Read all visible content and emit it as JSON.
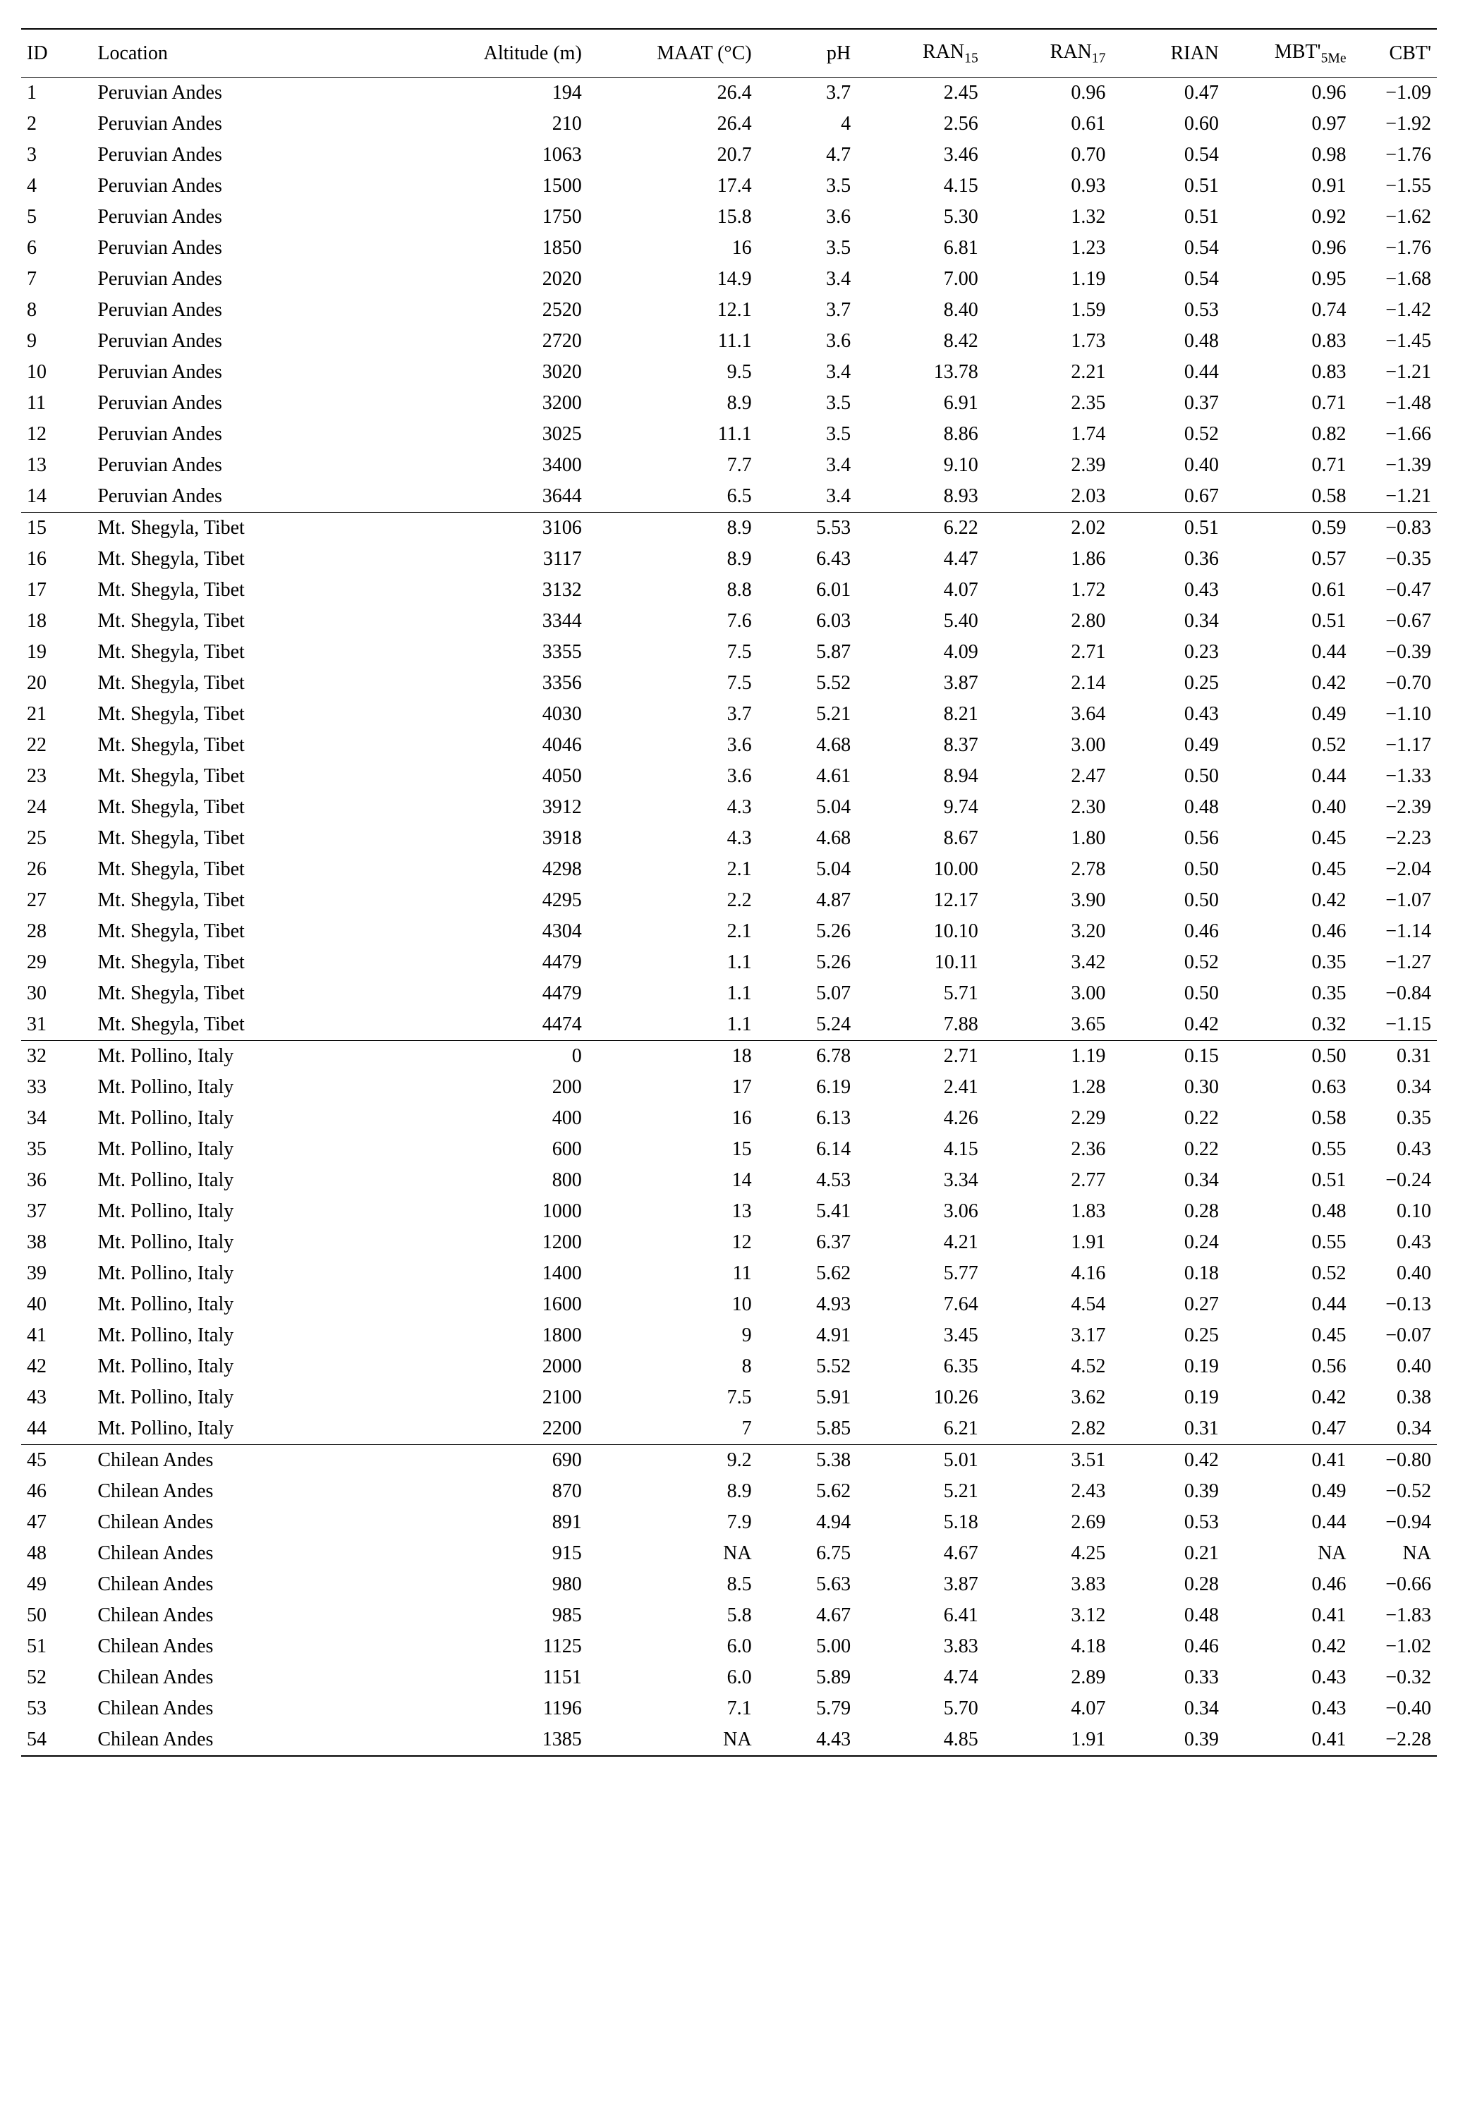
{
  "table": {
    "columns": [
      {
        "key": "id",
        "label": "ID",
        "align": "left",
        "width": "5%"
      },
      {
        "key": "location",
        "label": "Location",
        "align": "left",
        "width": "22%"
      },
      {
        "key": "altitude",
        "label": "Altitude (m)",
        "align": "right",
        "width": "13%"
      },
      {
        "key": "maat",
        "label": "MAAT (°C)",
        "align": "right",
        "width": "12%"
      },
      {
        "key": "ph",
        "label": "pH",
        "align": "right",
        "width": "7%"
      },
      {
        "key": "ran15",
        "label": "RAN",
        "sub": "15",
        "align": "right",
        "width": "9%"
      },
      {
        "key": "ran17",
        "label": "RAN",
        "sub": "17",
        "align": "right",
        "width": "9%"
      },
      {
        "key": "rian",
        "label": "RIAN",
        "align": "right",
        "width": "8%"
      },
      {
        "key": "mbt",
        "label": "MBT'",
        "sub": "5Me",
        "align": "right",
        "width": "9%"
      },
      {
        "key": "cbt",
        "label": "CBT'",
        "align": "right",
        "width": "8%"
      }
    ],
    "border_color": "#000000",
    "background_color": "#ffffff",
    "text_color": "#000000",
    "font_family": "Times New Roman",
    "header_fontsize": 28,
    "cell_fontsize": 28,
    "groups": [
      {
        "rows": [
          [
            "1",
            "Peruvian Andes",
            "194",
            "26.4",
            "3.7",
            "2.45",
            "0.96",
            "0.47",
            "0.96",
            "−1.09"
          ],
          [
            "2",
            "Peruvian Andes",
            "210",
            "26.4",
            "4",
            "2.56",
            "0.61",
            "0.60",
            "0.97",
            "−1.92"
          ],
          [
            "3",
            "Peruvian Andes",
            "1063",
            "20.7",
            "4.7",
            "3.46",
            "0.70",
            "0.54",
            "0.98",
            "−1.76"
          ],
          [
            "4",
            "Peruvian Andes",
            "1500",
            "17.4",
            "3.5",
            "4.15",
            "0.93",
            "0.51",
            "0.91",
            "−1.55"
          ],
          [
            "5",
            "Peruvian Andes",
            "1750",
            "15.8",
            "3.6",
            "5.30",
            "1.32",
            "0.51",
            "0.92",
            "−1.62"
          ],
          [
            "6",
            "Peruvian Andes",
            "1850",
            "16",
            "3.5",
            "6.81",
            "1.23",
            "0.54",
            "0.96",
            "−1.76"
          ],
          [
            "7",
            "Peruvian Andes",
            "2020",
            "14.9",
            "3.4",
            "7.00",
            "1.19",
            "0.54",
            "0.95",
            "−1.68"
          ],
          [
            "8",
            "Peruvian Andes",
            "2520",
            "12.1",
            "3.7",
            "8.40",
            "1.59",
            "0.53",
            "0.74",
            "−1.42"
          ],
          [
            "9",
            "Peruvian Andes",
            "2720",
            "11.1",
            "3.6",
            "8.42",
            "1.73",
            "0.48",
            "0.83",
            "−1.45"
          ],
          [
            "10",
            "Peruvian Andes",
            "3020",
            "9.5",
            "3.4",
            "13.78",
            "2.21",
            "0.44",
            "0.83",
            "−1.21"
          ],
          [
            "11",
            "Peruvian Andes",
            "3200",
            "8.9",
            "3.5",
            "6.91",
            "2.35",
            "0.37",
            "0.71",
            "−1.48"
          ],
          [
            "12",
            "Peruvian Andes",
            "3025",
            "11.1",
            "3.5",
            "8.86",
            "1.74",
            "0.52",
            "0.82",
            "−1.66"
          ],
          [
            "13",
            "Peruvian Andes",
            "3400",
            "7.7",
            "3.4",
            "9.10",
            "2.39",
            "0.40",
            "0.71",
            "−1.39"
          ],
          [
            "14",
            "Peruvian Andes",
            "3644",
            "6.5",
            "3.4",
            "8.93",
            "2.03",
            "0.67",
            "0.58",
            "−1.21"
          ]
        ]
      },
      {
        "rows": [
          [
            "15",
            "Mt. Shegyla, Tibet",
            "3106",
            "8.9",
            "5.53",
            "6.22",
            "2.02",
            "0.51",
            "0.59",
            "−0.83"
          ],
          [
            "16",
            "Mt. Shegyla, Tibet",
            "3117",
            "8.9",
            "6.43",
            "4.47",
            "1.86",
            "0.36",
            "0.57",
            "−0.35"
          ],
          [
            "17",
            "Mt. Shegyla, Tibet",
            "3132",
            "8.8",
            "6.01",
            "4.07",
            "1.72",
            "0.43",
            "0.61",
            "−0.47"
          ],
          [
            "18",
            "Mt. Shegyla, Tibet",
            "3344",
            "7.6",
            "6.03",
            "5.40",
            "2.80",
            "0.34",
            "0.51",
            "−0.67"
          ],
          [
            "19",
            "Mt. Shegyla, Tibet",
            "3355",
            "7.5",
            "5.87",
            "4.09",
            "2.71",
            "0.23",
            "0.44",
            "−0.39"
          ],
          [
            "20",
            "Mt. Shegyla, Tibet",
            "3356",
            "7.5",
            "5.52",
            "3.87",
            "2.14",
            "0.25",
            "0.42",
            "−0.70"
          ],
          [
            "21",
            "Mt. Shegyla, Tibet",
            "4030",
            "3.7",
            "5.21",
            "8.21",
            "3.64",
            "0.43",
            "0.49",
            "−1.10"
          ],
          [
            "22",
            "Mt. Shegyla, Tibet",
            "4046",
            "3.6",
            "4.68",
            "8.37",
            "3.00",
            "0.49",
            "0.52",
            "−1.17"
          ],
          [
            "23",
            "Mt. Shegyla, Tibet",
            "4050",
            "3.6",
            "4.61",
            "8.94",
            "2.47",
            "0.50",
            "0.44",
            "−1.33"
          ],
          [
            "24",
            "Mt. Shegyla, Tibet",
            "3912",
            "4.3",
            "5.04",
            "9.74",
            "2.30",
            "0.48",
            "0.40",
            "−2.39"
          ],
          [
            "25",
            "Mt. Shegyla, Tibet",
            "3918",
            "4.3",
            "4.68",
            "8.67",
            "1.80",
            "0.56",
            "0.45",
            "−2.23"
          ],
          [
            "26",
            "Mt. Shegyla, Tibet",
            "4298",
            "2.1",
            "5.04",
            "10.00",
            "2.78",
            "0.50",
            "0.45",
            "−2.04"
          ],
          [
            "27",
            "Mt. Shegyla, Tibet",
            "4295",
            "2.2",
            "4.87",
            "12.17",
            "3.90",
            "0.50",
            "0.42",
            "−1.07"
          ],
          [
            "28",
            "Mt. Shegyla, Tibet",
            "4304",
            "2.1",
            "5.26",
            "10.10",
            "3.20",
            "0.46",
            "0.46",
            "−1.14"
          ],
          [
            "29",
            "Mt. Shegyla, Tibet",
            "4479",
            "1.1",
            "5.26",
            "10.11",
            "3.42",
            "0.52",
            "0.35",
            "−1.27"
          ],
          [
            "30",
            "Mt. Shegyla, Tibet",
            "4479",
            "1.1",
            "5.07",
            "5.71",
            "3.00",
            "0.50",
            "0.35",
            "−0.84"
          ],
          [
            "31",
            "Mt. Shegyla, Tibet",
            "4474",
            "1.1",
            "5.24",
            "7.88",
            "3.65",
            "0.42",
            "0.32",
            "−1.15"
          ]
        ]
      },
      {
        "rows": [
          [
            "32",
            "Mt. Pollino, Italy",
            "0",
            "18",
            "6.78",
            "2.71",
            "1.19",
            "0.15",
            "0.50",
            "0.31"
          ],
          [
            "33",
            "Mt. Pollino, Italy",
            "200",
            "17",
            "6.19",
            "2.41",
            "1.28",
            "0.30",
            "0.63",
            "0.34"
          ],
          [
            "34",
            "Mt. Pollino, Italy",
            "400",
            "16",
            "6.13",
            "4.26",
            "2.29",
            "0.22",
            "0.58",
            "0.35"
          ],
          [
            "35",
            "Mt. Pollino, Italy",
            "600",
            "15",
            "6.14",
            "4.15",
            "2.36",
            "0.22",
            "0.55",
            "0.43"
          ],
          [
            "36",
            "Mt. Pollino, Italy",
            "800",
            "14",
            "4.53",
            "3.34",
            "2.77",
            "0.34",
            "0.51",
            "−0.24"
          ],
          [
            "37",
            "Mt. Pollino, Italy",
            "1000",
            "13",
            "5.41",
            "3.06",
            "1.83",
            "0.28",
            "0.48",
            "0.10"
          ],
          [
            "38",
            "Mt. Pollino, Italy",
            "1200",
            "12",
            "6.37",
            "4.21",
            "1.91",
            "0.24",
            "0.55",
            "0.43"
          ],
          [
            "39",
            "Mt. Pollino, Italy",
            "1400",
            "11",
            "5.62",
            "5.77",
            "4.16",
            "0.18",
            "0.52",
            "0.40"
          ],
          [
            "40",
            "Mt. Pollino, Italy",
            "1600",
            "10",
            "4.93",
            "7.64",
            "4.54",
            "0.27",
            "0.44",
            "−0.13"
          ],
          [
            "41",
            "Mt. Pollino, Italy",
            "1800",
            "9",
            "4.91",
            "3.45",
            "3.17",
            "0.25",
            "0.45",
            "−0.07"
          ],
          [
            "42",
            "Mt. Pollino, Italy",
            "2000",
            "8",
            "5.52",
            "6.35",
            "4.52",
            "0.19",
            "0.56",
            "0.40"
          ],
          [
            "43",
            "Mt. Pollino, Italy",
            "2100",
            "7.5",
            "5.91",
            "10.26",
            "3.62",
            "0.19",
            "0.42",
            "0.38"
          ],
          [
            "44",
            "Mt. Pollino, Italy",
            "2200",
            "7",
            "5.85",
            "6.21",
            "2.82",
            "0.31",
            "0.47",
            "0.34"
          ]
        ]
      },
      {
        "rows": [
          [
            "45",
            "Chilean Andes",
            "690",
            "9.2",
            "5.38",
            "5.01",
            "3.51",
            "0.42",
            "0.41",
            "−0.80"
          ],
          [
            "46",
            "Chilean Andes",
            "870",
            "8.9",
            "5.62",
            "5.21",
            "2.43",
            "0.39",
            "0.49",
            "−0.52"
          ],
          [
            "47",
            "Chilean Andes",
            "891",
            "7.9",
            "4.94",
            "5.18",
            "2.69",
            "0.53",
            "0.44",
            "−0.94"
          ],
          [
            "48",
            "Chilean Andes",
            "915",
            "NA",
            "6.75",
            "4.67",
            "4.25",
            "0.21",
            "NA",
            "NA"
          ],
          [
            "49",
            "Chilean Andes",
            "980",
            "8.5",
            "5.63",
            "3.87",
            "3.83",
            "0.28",
            "0.46",
            "−0.66"
          ],
          [
            "50",
            "Chilean Andes",
            "985",
            "5.8",
            "4.67",
            "6.41",
            "3.12",
            "0.48",
            "0.41",
            "−1.83"
          ],
          [
            "51",
            "Chilean Andes",
            "1125",
            "6.0",
            "5.00",
            "3.83",
            "4.18",
            "0.46",
            "0.42",
            "−1.02"
          ],
          [
            "52",
            "Chilean Andes",
            "1151",
            "6.0",
            "5.89",
            "4.74",
            "2.89",
            "0.33",
            "0.43",
            "−0.32"
          ],
          [
            "53",
            "Chilean Andes",
            "1196",
            "7.1",
            "5.79",
            "5.70",
            "4.07",
            "0.34",
            "0.43",
            "−0.40"
          ],
          [
            "54",
            "Chilean Andes",
            "1385",
            "NA",
            "4.43",
            "4.85",
            "1.91",
            "0.39",
            "0.41",
            "−2.28"
          ]
        ]
      }
    ]
  }
}
